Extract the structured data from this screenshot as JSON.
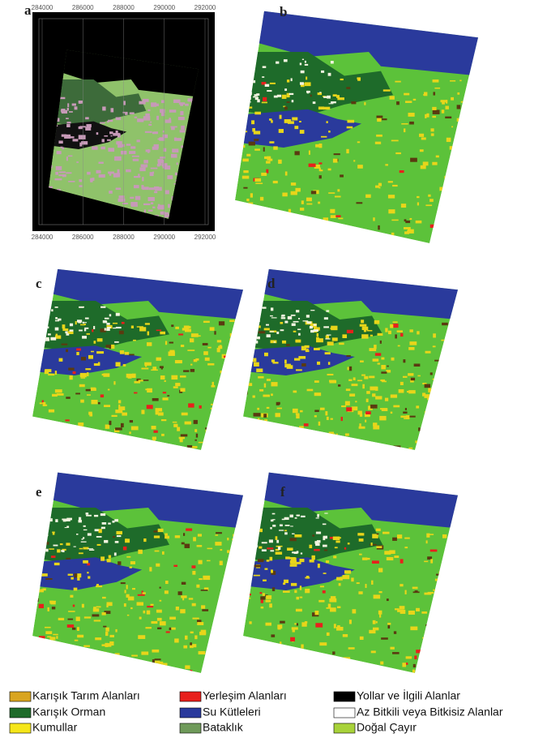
{
  "panels": [
    {
      "letter": "a"
    },
    {
      "letter": "b"
    },
    {
      "letter": "c"
    },
    {
      "letter": "d"
    },
    {
      "letter": "e"
    },
    {
      "letter": "f"
    }
  ],
  "panel_a_ticks": [
    "284000",
    "286000",
    "288000",
    "290000",
    "292000"
  ],
  "legend": [
    {
      "name": "Karışık Tarım Alanları",
      "color": "#d9a520"
    },
    {
      "name": "Yerleşim Alanları",
      "color": "#e8201c"
    },
    {
      "name": "Yollar ve İlgili Alanlar",
      "color": "#000000"
    },
    {
      "name": "Karışık Orman",
      "color": "#1e6b2a"
    },
    {
      "name": "Su Kütleleri",
      "color": "#2a3a9c"
    },
    {
      "name": "Az Bitkili veya Bitkisiz Alanlar",
      "color": "#ffffff"
    },
    {
      "name": "Kumullar",
      "color": "#f5e61a"
    },
    {
      "name": "Bataklık",
      "color": "#6f9a5a"
    },
    {
      "name": "Doğal Çayır",
      "color": "#a8d23a"
    }
  ]
}
